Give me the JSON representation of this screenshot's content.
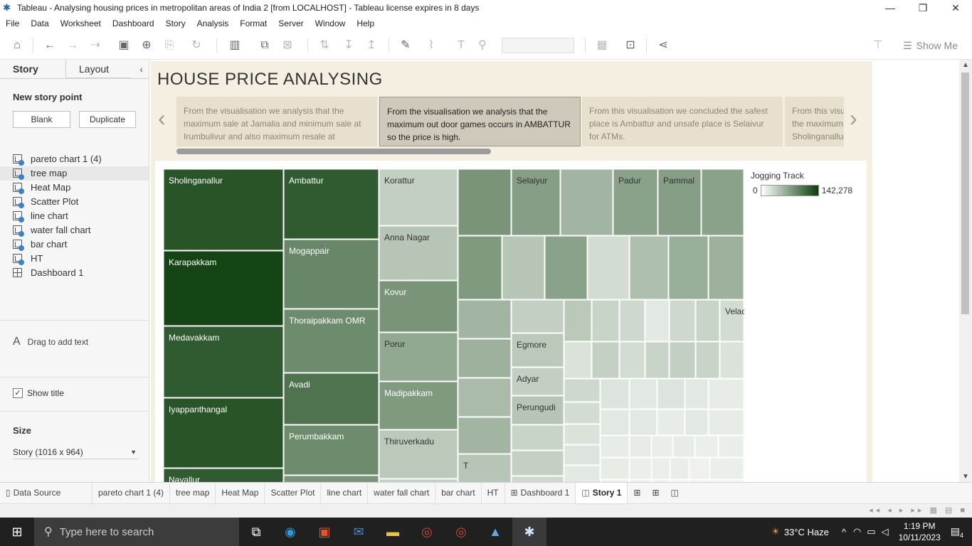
{
  "window": {
    "title": "Tableau - Analysing housing prices in metropolitan areas of India 2 [from LOCALHOST] - Tableau license expires in 8 days",
    "min": "—",
    "max": "❐",
    "close": "✕"
  },
  "menu": [
    "File",
    "Data",
    "Worksheet",
    "Dashboard",
    "Story",
    "Analysis",
    "Format",
    "Server",
    "Window",
    "Help"
  ],
  "toolbar": {
    "show_me": "Show Me"
  },
  "left_pane": {
    "tab_story": "Story",
    "tab_layout": "Layout",
    "new_story_point": "New story point",
    "blank": "Blank",
    "duplicate": "Duplicate",
    "sheets": [
      {
        "label": "pareto chart 1 (4)",
        "type": "sheet"
      },
      {
        "label": "tree map",
        "type": "sheet"
      },
      {
        "label": "Heat Map",
        "type": "sheet"
      },
      {
        "label": "Scatter Plot",
        "type": "sheet"
      },
      {
        "label": "line chart",
        "type": "sheet"
      },
      {
        "label": "water fall chart",
        "type": "sheet"
      },
      {
        "label": "bar chart",
        "type": "sheet"
      },
      {
        "label": "HT",
        "type": "sheet"
      },
      {
        "label": "Dashboard 1",
        "type": "dashboard"
      }
    ],
    "drag_text": "Drag to add text",
    "show_title": "Show title",
    "size_label": "Size",
    "size_value": "Story (1016 x 964)"
  },
  "story": {
    "title": "HOUSE PRICE ANALYSING",
    "points": [
      "From the visualisation   we analysis that the maximum sale at Jamalia and  minimum sale at  Irumbulivur and also maximum resale at",
      "From the visualisation we analysis that the maximum out door games occurs in AMBATTUR so the price is high.",
      "From this visualisation we concluded the safest place is Ambattur and unsafe place is Selaivur for ATMs.",
      "From this visualisation we analysis that the maximum facilities are available in Sholinganallur"
    ],
    "active_point": 1
  },
  "chart_data": {
    "type": "treemap",
    "measure": "Jogging Track",
    "legend": {
      "title": "Jogging Track",
      "min": "0",
      "max": "142,278",
      "color_low": "#ffffff",
      "color_high": "#0b3d0b"
    },
    "labeled_tiles": [
      "Sholinganallur",
      "Karapakkam",
      "Medavakkam",
      "Iyappanthangal",
      "Navallur",
      "Ambattur",
      "Mogappair",
      "Thoraipakkam OMR",
      "Avadi",
      "Perumbakkam",
      "Korattur",
      "Anna Nagar",
      "Kovur",
      "Porur",
      "Madipakkam",
      "Thiruverkadu",
      "Selaiyur",
      "Padur",
      "Pammal",
      "Egmore",
      "Adyar",
      "Perungudi",
      "Velachery",
      "T"
    ]
  },
  "sheet_tabs": [
    {
      "label": "Data Source",
      "icon": "database-icon"
    },
    {
      "label": "pareto chart 1 (4)"
    },
    {
      "label": "tree map"
    },
    {
      "label": "Heat Map"
    },
    {
      "label": "Scatter Plot"
    },
    {
      "label": "line chart"
    },
    {
      "label": "water fall chart"
    },
    {
      "label": "bar chart"
    },
    {
      "label": "HT"
    },
    {
      "label": "Dashboard 1",
      "icon": "dashboard-icon"
    },
    {
      "label": "Story 1",
      "icon": "story-icon"
    }
  ],
  "taskbar": {
    "search_placeholder": "Type here to search",
    "weather": "33°C  Haze",
    "time": "1:19 PM",
    "date": "10/11/2023",
    "notifications": "4"
  }
}
